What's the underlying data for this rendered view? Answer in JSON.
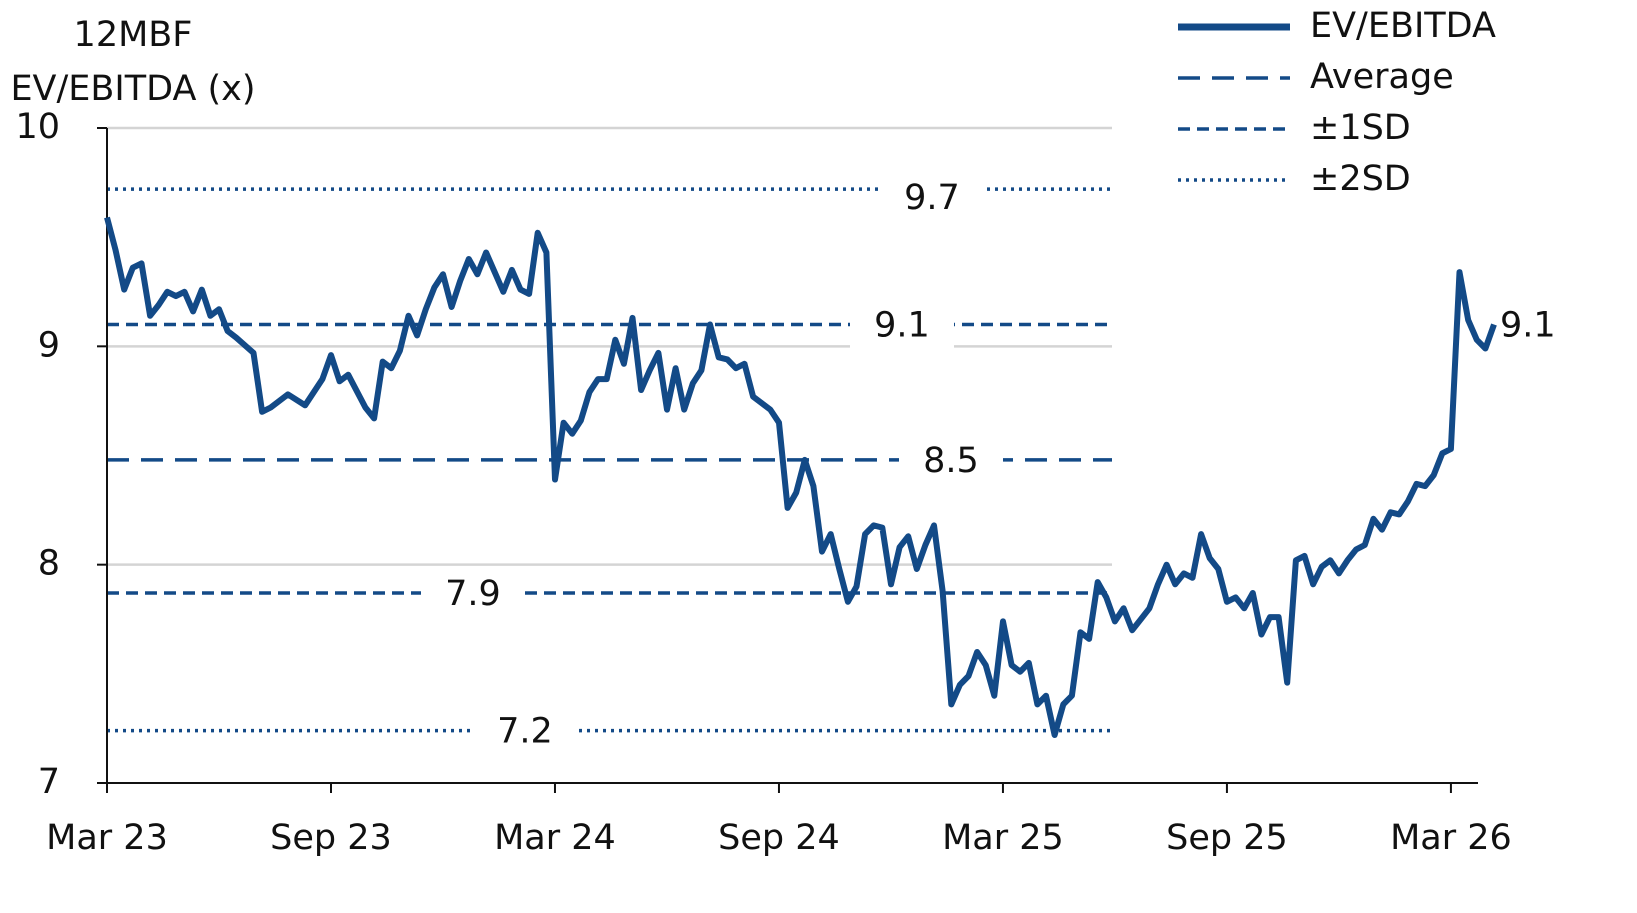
{
  "chart_data": {
    "type": "line",
    "y_label": [
      "12MBF",
      "EV/EBITDA (x)"
    ],
    "xlim": [
      0,
      161
    ],
    "xticks": [
      {
        "value": 0,
        "label": "Mar 23"
      },
      {
        "value": 26,
        "label": "Sep 23"
      },
      {
        "value": 52,
        "label": "Mar 24"
      },
      {
        "value": 78,
        "label": "Sep 24"
      },
      {
        "value": 104,
        "label": "Mar 25"
      },
      {
        "value": 130,
        "label": "Sep 25"
      },
      {
        "value": 156,
        "label": "Mar 26"
      }
    ],
    "ylim": [
      7,
      10
    ],
    "yticks": [
      7,
      8,
      9,
      10
    ],
    "grid": true,
    "legend": "top-right",
    "series": [
      {
        "name": "EV/EBITDA",
        "color": "#134a87",
        "end_label": "9.1",
        "x": [
          0,
          1,
          2,
          3,
          4,
          5,
          6,
          7,
          8,
          9,
          10,
          11,
          12,
          13,
          14,
          15,
          17,
          18,
          19,
          21,
          23,
          25,
          26,
          27,
          28,
          30,
          31,
          32,
          33,
          34,
          35,
          36,
          37,
          38,
          39,
          40,
          41,
          42,
          43,
          44,
          46,
          47,
          48,
          49,
          50,
          51,
          52,
          53,
          54,
          55,
          56,
          57,
          58,
          59,
          60,
          61,
          62,
          63,
          64,
          65,
          66,
          67,
          68,
          69,
          70,
          71,
          72,
          73,
          74,
          75,
          76,
          77,
          78,
          79,
          80,
          81,
          82,
          83,
          84,
          85,
          86,
          87,
          88,
          89,
          90,
          91,
          92,
          93,
          94,
          95,
          96,
          97,
          98,
          99,
          100,
          101,
          102,
          103,
          104,
          105,
          106,
          107,
          108,
          109,
          110,
          111,
          112,
          113,
          114,
          115,
          116,
          117,
          118,
          119,
          120,
          121,
          122,
          123,
          124,
          125,
          126,
          127,
          128,
          129,
          130,
          131,
          132,
          133,
          134,
          135,
          136,
          137,
          138,
          139,
          140,
          141,
          142,
          143,
          144,
          145,
          146,
          147,
          148,
          149,
          150,
          151,
          152,
          153,
          154,
          155,
          156,
          157,
          158,
          159,
          160,
          161
        ],
        "values": [
          9.59,
          9.44,
          9.26,
          9.36,
          9.38,
          9.14,
          9.19,
          9.25,
          9.23,
          9.25,
          9.16,
          9.26,
          9.14,
          9.17,
          9.07,
          9.04,
          8.97,
          8.7,
          8.72,
          8.78,
          8.73,
          8.85,
          8.96,
          8.84,
          8.87,
          8.72,
          8.67,
          8.93,
          8.9,
          8.98,
          9.14,
          9.05,
          9.17,
          9.27,
          9.33,
          9.18,
          9.3,
          9.4,
          9.33,
          9.43,
          9.25,
          9.35,
          9.26,
          9.24,
          9.52,
          9.43,
          8.39,
          8.65,
          8.6,
          8.66,
          8.79,
          8.85,
          8.85,
          9.03,
          8.92,
          9.13,
          8.8,
          8.89,
          8.97,
          8.71,
          8.9,
          8.71,
          8.83,
          8.89,
          9.1,
          8.95,
          8.94,
          8.9,
          8.92,
          8.77,
          8.74,
          8.71,
          8.65,
          8.26,
          8.33,
          8.48,
          8.36,
          8.06,
          8.14,
          7.98,
          7.83,
          7.9,
          8.14,
          8.18,
          8.17,
          7.91,
          8.08,
          8.13,
          7.98,
          8.09,
          8.18,
          7.88,
          7.36,
          7.45,
          7.49,
          7.6,
          7.54,
          7.4,
          7.74,
          7.54,
          7.51,
          7.55,
          7.36,
          7.4,
          7.22,
          7.36,
          7.4,
          7.69,
          7.66,
          7.92,
          7.85,
          7.74,
          7.8,
          7.7,
          7.75,
          7.8,
          7.91,
          8.0,
          7.91,
          7.96,
          7.94,
          8.14,
          8.03,
          7.98,
          7.83,
          7.85,
          7.8,
          7.87,
          7.68,
          7.76,
          7.76,
          7.46,
          8.02,
          8.04,
          7.91,
          7.99,
          8.02,
          7.96,
          8.02,
          8.07,
          8.09,
          8.21,
          8.16,
          8.24,
          8.23,
          8.29,
          8.37,
          8.36,
          8.41,
          8.51,
          8.53,
          9.34,
          9.12,
          9.03,
          8.99,
          9.1
        ]
      }
    ],
    "reference_lines": [
      {
        "name": "Average",
        "color": "#134a87",
        "style": "dashed",
        "lines": [
          {
            "value": 8.48,
            "label": "8.5"
          }
        ]
      },
      {
        "name": "±1SD",
        "color": "#134a87",
        "style": "short-dash",
        "lines": [
          {
            "value": 9.1,
            "label": "9.1"
          },
          {
            "value": 7.87,
            "label": "7.9"
          }
        ]
      },
      {
        "name": "±2SD",
        "color": "#134a87",
        "style": "dotted",
        "lines": [
          {
            "value": 9.72,
            "label": "9.7"
          },
          {
            "value": 7.24,
            "label": "7.2"
          }
        ]
      }
    ]
  }
}
